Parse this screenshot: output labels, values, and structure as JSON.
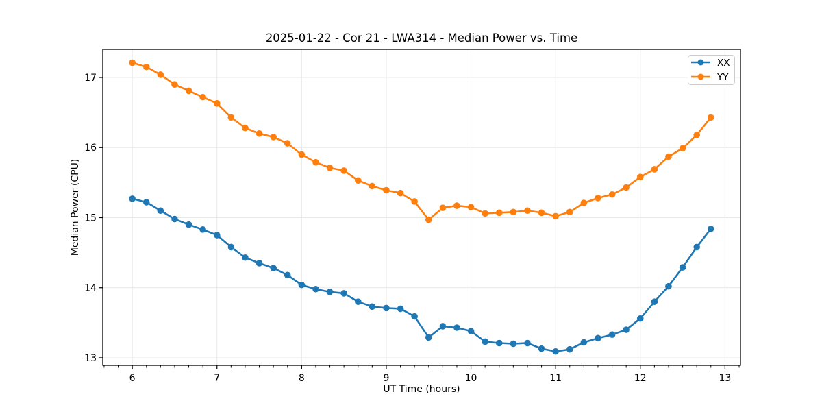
{
  "figure": {
    "background": "#ffffff",
    "spine_color": "#000000",
    "tick_color": "#000000"
  },
  "chart_data": {
    "type": "line",
    "title": "2025-01-22 - Cor 21 - LWA314 - Median Power vs. Time",
    "xlabel": "UT Time (hours)",
    "ylabel": "Median Power (CPU)",
    "xlim": [
      5.651,
      13.183
    ],
    "ylim": [
      12.892,
      17.401
    ],
    "xticks": [
      6,
      7,
      8,
      9,
      10,
      11,
      12,
      13
    ],
    "xtick_labels": [
      "6",
      "7",
      "8",
      "9",
      "10",
      "11",
      "12",
      "13"
    ],
    "x_minor_tick_step": 0.166667,
    "yticks": [
      13,
      14,
      15,
      16,
      17
    ],
    "ytick_labels": [
      "13",
      "14",
      "15",
      "16",
      "17"
    ],
    "grid": true,
    "grid_color": "#e8e8e8",
    "legend": {
      "position": "upper right",
      "entries": [
        "XX",
        "YY"
      ],
      "frame_color": "#cccccc",
      "frame_fill": "#ffffff"
    },
    "x": [
      6.0,
      6.167,
      6.333,
      6.5,
      6.667,
      6.833,
      7.0,
      7.167,
      7.333,
      7.5,
      7.667,
      7.833,
      8.0,
      8.167,
      8.333,
      8.5,
      8.667,
      8.833,
      9.0,
      9.167,
      9.333,
      9.5,
      9.667,
      9.833,
      10.0,
      10.167,
      10.333,
      10.5,
      10.667,
      10.833,
      11.0,
      11.167,
      11.333,
      11.5,
      11.667,
      11.833,
      12.0,
      12.167,
      12.333,
      12.5,
      12.667,
      12.833
    ],
    "series": [
      {
        "name": "XX",
        "color": "#1f77b4",
        "values": [
          15.27,
          15.22,
          15.1,
          14.98,
          14.9,
          14.83,
          14.75,
          14.58,
          14.43,
          14.35,
          14.28,
          14.18,
          14.04,
          13.98,
          13.94,
          13.92,
          13.8,
          13.73,
          13.71,
          13.7,
          13.59,
          13.29,
          13.45,
          13.43,
          13.38,
          13.23,
          13.21,
          13.2,
          13.21,
          13.13,
          13.09,
          13.12,
          13.22,
          13.28,
          13.33,
          13.4,
          13.56,
          13.8,
          14.02,
          14.29,
          14.58,
          14.84
        ]
      },
      {
        "name": "YY",
        "color": "#ff7f0e",
        "values": [
          17.21,
          17.15,
          17.04,
          16.9,
          16.81,
          16.72,
          16.63,
          16.43,
          16.28,
          16.2,
          16.15,
          16.06,
          15.9,
          15.79,
          15.71,
          15.67,
          15.53,
          15.45,
          15.39,
          15.35,
          15.23,
          14.97,
          15.14,
          15.17,
          15.15,
          15.06,
          15.07,
          15.08,
          15.1,
          15.07,
          15.02,
          15.08,
          15.21,
          15.28,
          15.33,
          15.43,
          15.58,
          15.69,
          15.87,
          15.99,
          16.18,
          16.43
        ]
      }
    ]
  }
}
